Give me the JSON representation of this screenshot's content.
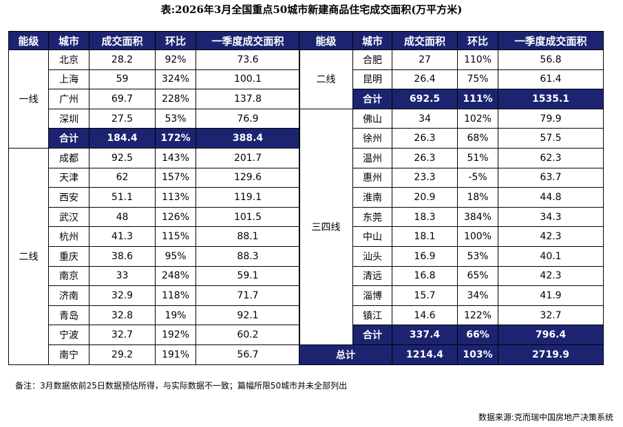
{
  "title": "表:2026年3月全国重点50城市新建商品住宅成交面积(万平方米)",
  "headers": [
    "能级",
    "城市",
    "成交面积",
    "环比",
    "一季度成交面积"
  ],
  "left": [
    {
      "level": "一线",
      "rows": [
        [
          "北京",
          "28.2",
          "92%",
          "73.6"
        ],
        [
          "上海",
          "59",
          "324%",
          "100.1"
        ],
        [
          "广州",
          "69.7",
          "228%",
          "137.8"
        ],
        [
          "深圳",
          "27.5",
          "53%",
          "76.9"
        ]
      ],
      "total": [
        "合计",
        "184.4",
        "172%",
        "388.4"
      ]
    },
    {
      "level": "二线",
      "rows": [
        [
          "成都",
          "92.5",
          "143%",
          "201.7"
        ],
        [
          "天津",
          "62",
          "157%",
          "129.6"
        ],
        [
          "西安",
          "51.1",
          "113%",
          "119.1"
        ],
        [
          "武汉",
          "48",
          "126%",
          "101.5"
        ],
        [
          "杭州",
          "41.3",
          "115%",
          "88.1"
        ],
        [
          "重庆",
          "38.6",
          "95%",
          "88.3"
        ],
        [
          "南京",
          "33",
          "248%",
          "59.1"
        ],
        [
          "济南",
          "32.9",
          "118%",
          "71.7"
        ],
        [
          "青岛",
          "32.8",
          "19%",
          "92.1"
        ],
        [
          "宁波",
          "32.7",
          "192%",
          "60.2"
        ],
        [
          "南宁",
          "29.2",
          "191%",
          "56.7"
        ]
      ]
    }
  ],
  "right": [
    {
      "level": "二线",
      "rows": [
        [
          "合肥",
          "27",
          "110%",
          "56.8"
        ],
        [
          "昆明",
          "26.4",
          "75%",
          "61.4"
        ]
      ],
      "total": [
        "合计",
        "692.5",
        "111%",
        "1535.1"
      ]
    },
    {
      "level": "三四线",
      "rows": [
        [
          "佛山",
          "34",
          "102%",
          "79.9"
        ],
        [
          "徐州",
          "26.3",
          "68%",
          "57.5"
        ],
        [
          "温州",
          "26.3",
          "51%",
          "62.3"
        ],
        [
          "惠州",
          "23.3",
          "-5%",
          "63.7"
        ],
        [
          "淮南",
          "20.9",
          "18%",
          "44.8"
        ],
        [
          "东莞",
          "18.3",
          "384%",
          "34.3"
        ],
        [
          "中山",
          "18.1",
          "100%",
          "42.3"
        ],
        [
          "汕头",
          "16.9",
          "53%",
          "40.1"
        ],
        [
          "清远",
          "16.8",
          "65%",
          "42.3"
        ],
        [
          "淄博",
          "15.7",
          "34%",
          "41.9"
        ],
        [
          "镇江",
          "14.6",
          "122%",
          "32.7"
        ]
      ],
      "total": [
        "合计",
        "337.4",
        "66%",
        "796.4"
      ]
    }
  ],
  "grand_total": [
    "总计",
    "1214.4",
    "103%",
    "2719.9"
  ],
  "note": "备注：3月数据依前25日数据预估所得，与实际数据不一致；篇幅所限50城市并未全部列出",
  "source": "数据来源:克而瑞中国房地产决策系统",
  "colors": {
    "header_bg": "#1c2471",
    "header_text": "#ffffff"
  }
}
